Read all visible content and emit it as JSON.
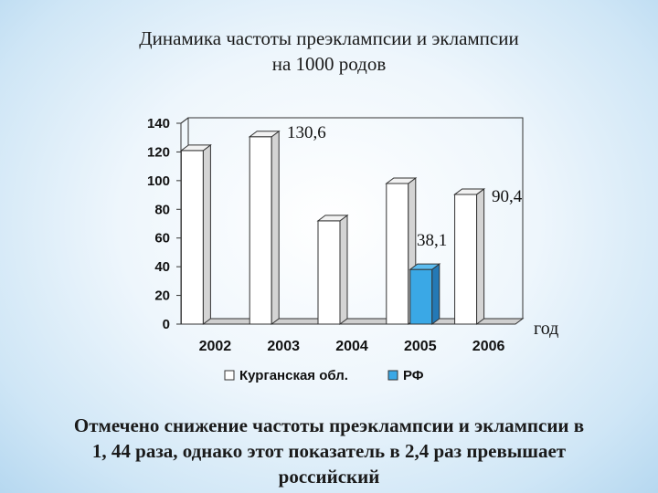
{
  "title": {
    "line1": "Динамика частоты преэклампсии и эклампсии",
    "line2": "на 1000 родов"
  },
  "chart_data": {
    "type": "bar",
    "categories": [
      "2002",
      "2003",
      "2004",
      "2005",
      "2006"
    ],
    "series": [
      {
        "name": "Курганская обл.",
        "color": "#ffffff",
        "values": [
          121,
          130.6,
          72,
          98,
          90.4
        ]
      },
      {
        "name": "РФ",
        "color": "#3aa8e6",
        "values": [
          0,
          0,
          0,
          38.1,
          0
        ]
      }
    ],
    "ylim": [
      0,
      140
    ],
    "yticks": [
      "0",
      "20",
      "40",
      "60",
      "80",
      "100",
      "120",
      "140"
    ],
    "xlabel": "год",
    "data_labels": [
      "130,6",
      "38,1",
      "90,4"
    ],
    "legend_position": "bottom"
  },
  "caption": {
    "line1": "Отмечено снижение частоты преэклампсии и эклампсии в",
    "line2": "1, 44 раза, однако этот показатель в 2,4 раз превышает",
    "line3": "российский"
  }
}
